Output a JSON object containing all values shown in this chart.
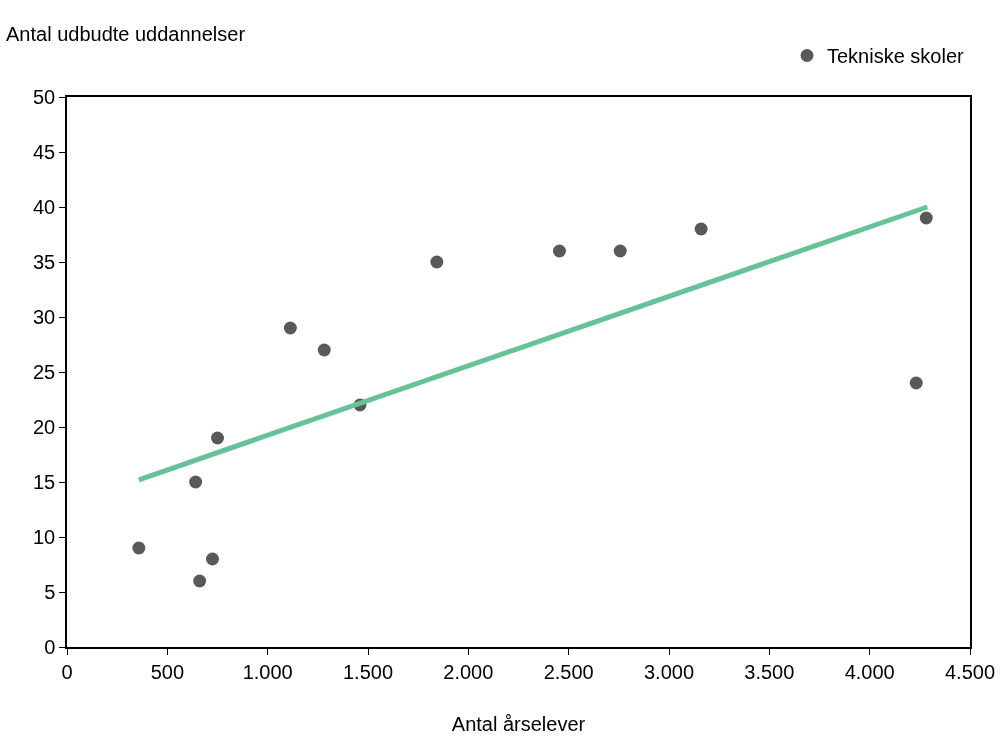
{
  "chart_data": {
    "type": "scatter",
    "xlabel": "Antal årselever",
    "ylabel": "Antal udbudte uddannelser",
    "xlim": [
      0,
      4500
    ],
    "xticks": [
      {
        "value": 0,
        "label": "0"
      },
      {
        "value": 500,
        "label": "500"
      },
      {
        "value": 1000,
        "label": "1.000"
      },
      {
        "value": 1500,
        "label": "1.500"
      },
      {
        "value": 2000,
        "label": "2.000"
      },
      {
        "value": 2500,
        "label": "2.500"
      },
      {
        "value": 3000,
        "label": "3.000"
      },
      {
        "value": 3500,
        "label": "3.500"
      },
      {
        "value": 4000,
        "label": "4.000"
      },
      {
        "value": 4500,
        "label": "4.500"
      }
    ],
    "ylim": [
      0,
      50
    ],
    "yticks": [
      0,
      5,
      10,
      15,
      20,
      25,
      30,
      35,
      40,
      45,
      50
    ],
    "grid": false,
    "legend": "top right",
    "marker": "circle",
    "series": [
      {
        "name": "Tekniske skoler",
        "color": "#595959",
        "x": [
          358,
          641,
          661,
          725,
          750,
          1113,
          1282,
          1460,
          1843,
          2454,
          2757,
          3160,
          4232,
          4282
        ],
        "values": [
          9,
          15,
          6,
          8,
          19,
          29,
          27,
          22,
          35,
          36,
          36,
          38,
          24,
          39
        ]
      },
      {
        "type": "line",
        "color": "#66c298",
        "line_style": "solid",
        "marker": "none",
        "x": [
          358,
          4287
        ],
        "values": [
          15.2,
          40.0
        ]
      }
    ]
  }
}
